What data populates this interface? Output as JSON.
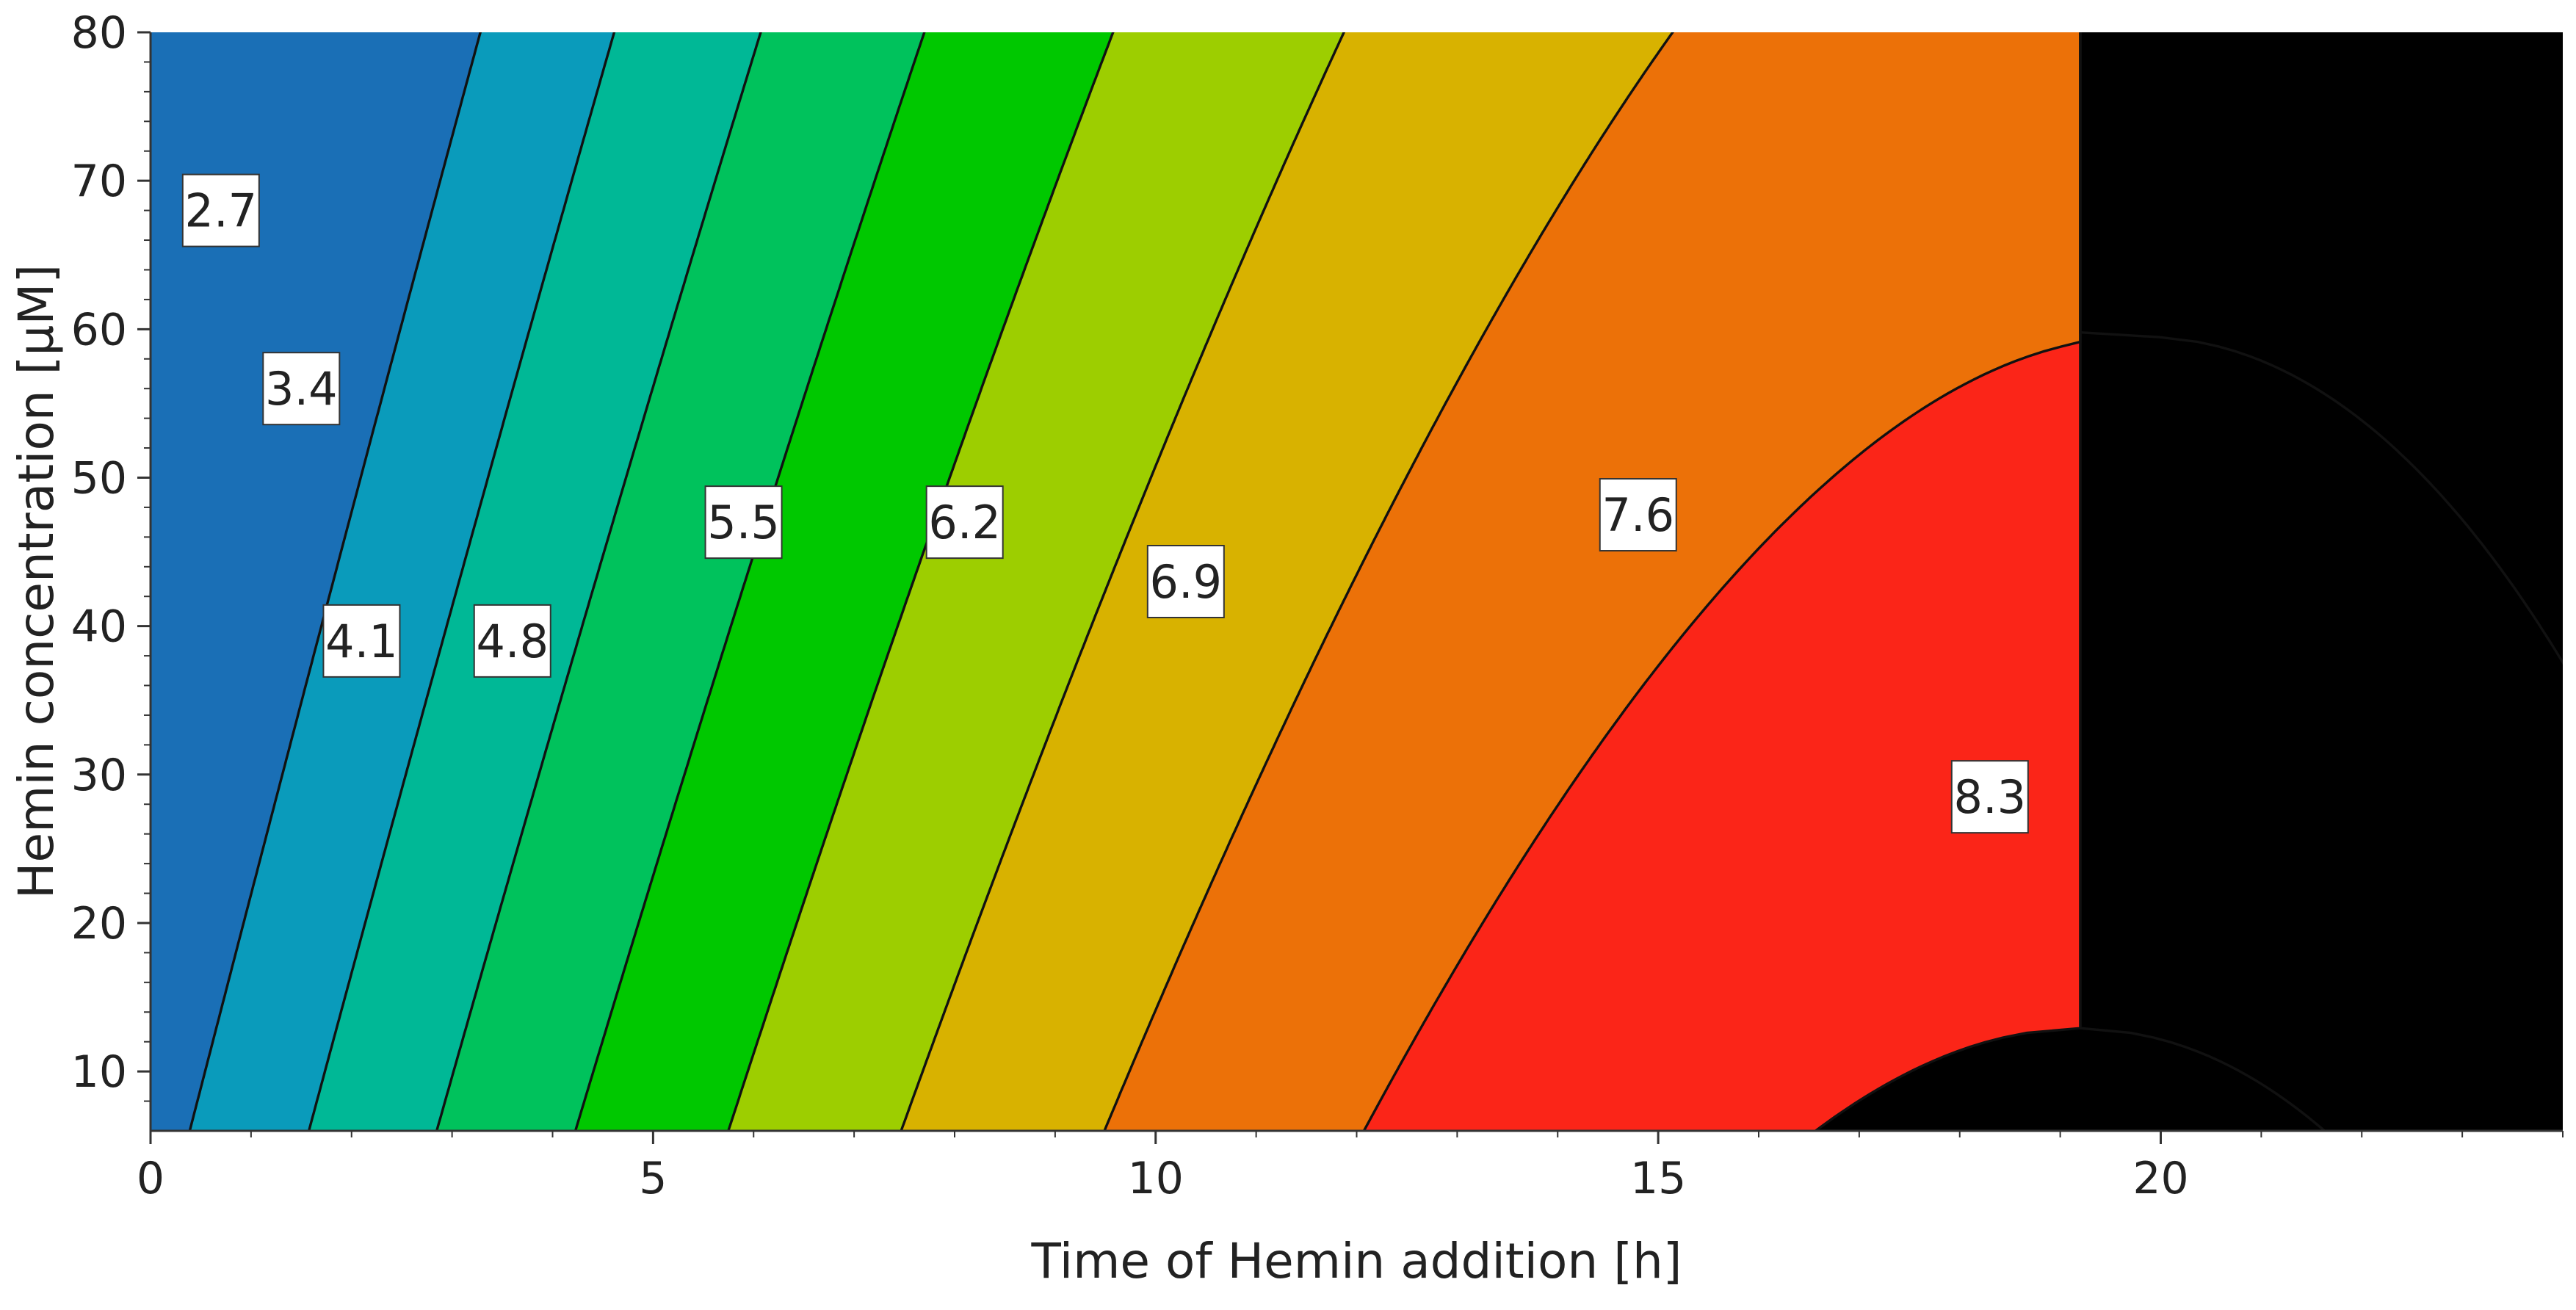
{
  "chart_data": {
    "type": "heatmap",
    "subtype": "contour",
    "title": "",
    "xlabel": "Time of Hemin addition [h]",
    "ylabel": "Hemin concentration [µM]",
    "xlim": [
      0,
      24
    ],
    "ylim": [
      6,
      80
    ],
    "x_ticks": [
      0,
      5,
      10,
      15,
      20
    ],
    "y_ticks": [
      10,
      20,
      30,
      40,
      50,
      60,
      70,
      80
    ],
    "x_tick_labels": [
      "0",
      "5",
      "10",
      "15",
      "20"
    ],
    "y_tick_labels": [
      "10",
      "20",
      "30",
      "40",
      "50",
      "60",
      "70",
      "80"
    ],
    "contour_levels": [
      2.7,
      3.4,
      4.1,
      4.8,
      5.5,
      6.2,
      6.9,
      7.6,
      8.3
    ],
    "contour_labels": [
      {
        "text": "2.7",
        "x": 0.7,
        "y": 68
      },
      {
        "text": "3.4",
        "x": 1.5,
        "y": 56
      },
      {
        "text": "4.1",
        "x": 2.1,
        "y": 39
      },
      {
        "text": "4.8",
        "x": 3.6,
        "y": 39
      },
      {
        "text": "5.5",
        "x": 5.9,
        "y": 47
      },
      {
        "text": "6.2",
        "x": 8.1,
        "y": 47
      },
      {
        "text": "6.9",
        "x": 10.3,
        "y": 43
      },
      {
        "text": "7.6",
        "x": 14.8,
        "y": 47.5
      },
      {
        "text": "8.3",
        "x": 18.3,
        "y": 28.5
      }
    ],
    "band_colors": [
      "#1a6fb6",
      "#0a9bbb",
      "#00b896",
      "#00c25c",
      "#00c800",
      "#9dce00",
      "#d8b200",
      "#ec7108",
      "#fb2518"
    ]
  }
}
